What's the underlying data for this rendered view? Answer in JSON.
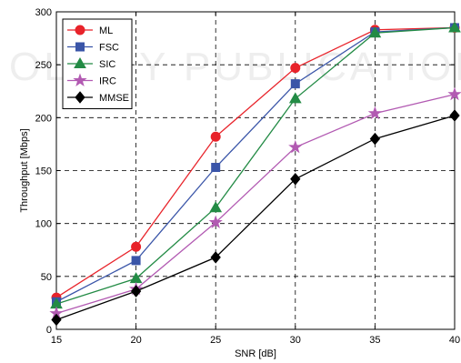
{
  "watermark": "OLOGY PUBLICATIONS",
  "chart_data": {
    "type": "line",
    "xlabel": "SNR [dB]",
    "ylabel": "Throughput [Mbps]",
    "xlim": [
      15,
      40
    ],
    "ylim": [
      0,
      300
    ],
    "xticks": [
      15,
      20,
      25,
      30,
      35,
      40
    ],
    "yticks": [
      0,
      50,
      100,
      150,
      200,
      250,
      300
    ],
    "grid": true,
    "legend_position": "top-left",
    "x": [
      15,
      20,
      25,
      30,
      35,
      40
    ],
    "series": [
      {
        "name": "ML",
        "color": "#e8232a",
        "marker": "circle",
        "values": [
          30,
          78,
          182,
          247,
          283,
          285
        ]
      },
      {
        "name": "FSC",
        "color": "#3a55a8",
        "marker": "square",
        "values": [
          26,
          65,
          153,
          232,
          281,
          285
        ]
      },
      {
        "name": "SIC",
        "color": "#238b45",
        "marker": "triangle",
        "values": [
          24,
          48,
          115,
          218,
          280,
          285
        ]
      },
      {
        "name": "IRC",
        "color": "#b25ab2",
        "marker": "star",
        "values": [
          15,
          38,
          101,
          172,
          204,
          222
        ]
      },
      {
        "name": "MMSE",
        "color": "#000000",
        "marker": "diamond",
        "values": [
          9,
          36,
          68,
          142,
          180,
          202
        ]
      }
    ]
  }
}
